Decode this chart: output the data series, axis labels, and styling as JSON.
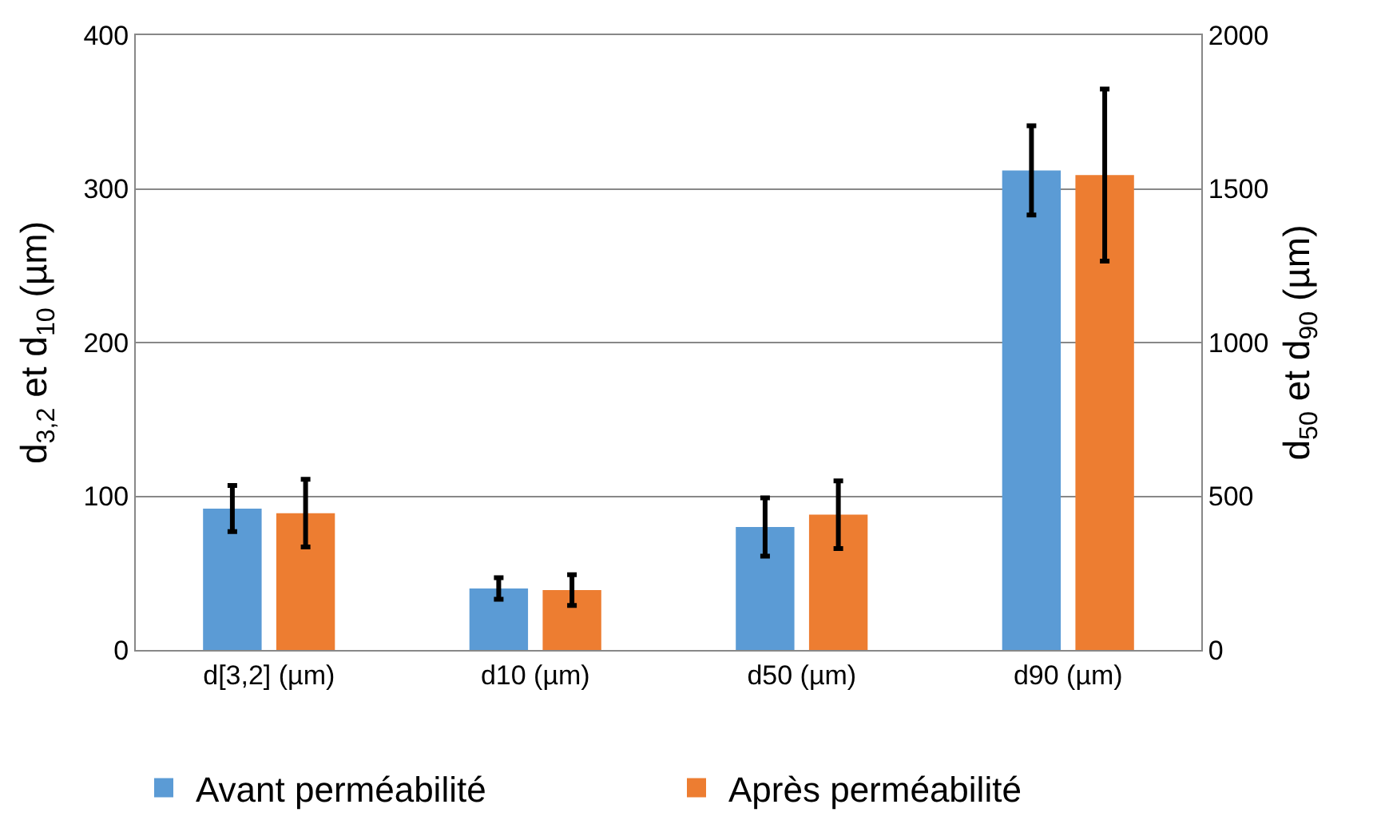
{
  "chart_data": {
    "type": "bar",
    "categories": [
      "d[3,2] (µm)",
      "d10 (µm)",
      "d50 (µm)",
      "d90 (µm)"
    ],
    "ylabel": "d$_{3,2}$ et d$_{10}$ (µm)",
    "y2label": "d$_{50}$ et d$_{90}$ (µm)",
    "ylim": [
      0,
      400
    ],
    "yticks": [
      0,
      100,
      200,
      300,
      400
    ],
    "y2lim": [
      0,
      2000
    ],
    "y2ticks": [
      0,
      500,
      1000,
      1500,
      2000
    ],
    "grid": "y",
    "legend": "bottom",
    "series": [
      {
        "name": "Avant perméabilité",
        "color": "#5b9bd5",
        "values": [
          92,
          40,
          null,
          null
        ],
        "errors": [
          15,
          7,
          null,
          null
        ]
      },
      {
        "name": "Après perméabilité",
        "color": "#ed7d31",
        "values": [
          89,
          39,
          null,
          null
        ],
        "errors": [
          22,
          10,
          null,
          null
        ]
      },
      {
        "color": "#5b9bd5",
        "axis": "y2",
        "values": [
          null,
          null,
          400,
          1560
        ],
        "errors": [
          null,
          null,
          95,
          145
        ]
      },
      {
        "color": "#ed7d31",
        "axis": "y2",
        "values": [
          null,
          null,
          440,
          1545
        ],
        "errors": [
          null,
          null,
          110,
          280
        ]
      }
    ]
  }
}
